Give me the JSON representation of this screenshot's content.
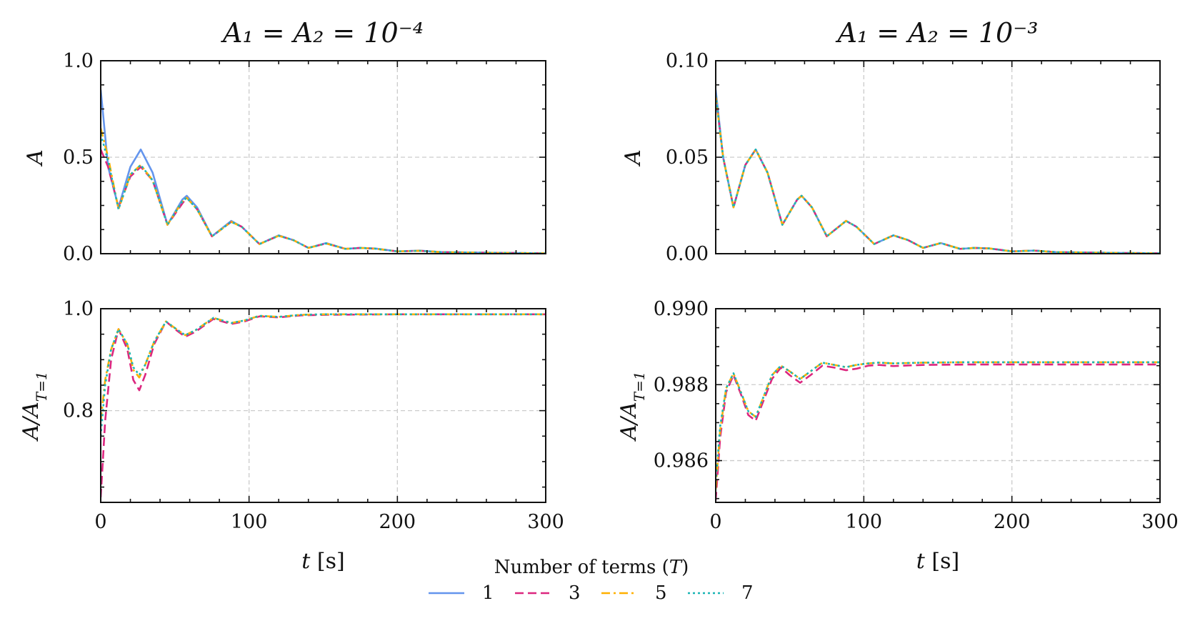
{
  "legend": {
    "title": "Number of terms (T)",
    "entries": [
      {
        "label": "1",
        "color": "#6495ed",
        "dash": "solid"
      },
      {
        "label": "3",
        "color": "#dc267f",
        "dash": "dashed"
      },
      {
        "label": "5",
        "color": "#ffb000",
        "dash": "dashdot"
      },
      {
        "label": "7",
        "color": "#1bb5b5",
        "dash": "dotted"
      }
    ]
  },
  "chart_data": [
    {
      "id": "top-left",
      "type": "line",
      "title": "A₁ = A₂ = 10⁻⁴",
      "ylabel": "A",
      "xlabel": "",
      "xlim": [
        0,
        300
      ],
      "ylim": [
        0,
        1.0
      ],
      "yticks": [
        "0.0",
        "0.5",
        "1.0"
      ],
      "xticks": [
        "",
        "",
        "",
        ""
      ],
      "grid": true,
      "series": [
        {
          "name": "1",
          "x": [
            0,
            5,
            12,
            20,
            27,
            35,
            45,
            55,
            58,
            65,
            75,
            88,
            95,
            107,
            120,
            130,
            140,
            152,
            165,
            175,
            185,
            200,
            215,
            230,
            250,
            270,
            300
          ],
          "y": [
            0.85,
            0.45,
            0.24,
            0.45,
            0.54,
            0.42,
            0.15,
            0.28,
            0.3,
            0.24,
            0.09,
            0.17,
            0.14,
            0.05,
            0.095,
            0.07,
            0.03,
            0.055,
            0.025,
            0.03,
            0.027,
            0.012,
            0.016,
            0.008,
            0.006,
            0.004,
            0.002
          ]
        },
        {
          "name": "3",
          "x": [
            0,
            5,
            12,
            20,
            27,
            35,
            45,
            55,
            58,
            65,
            75,
            88,
            95,
            107,
            120,
            130,
            140,
            152,
            165,
            175,
            185,
            200,
            215,
            230,
            250,
            270,
            300
          ],
          "y": [
            0.54,
            0.45,
            0.24,
            0.4,
            0.45,
            0.38,
            0.15,
            0.26,
            0.29,
            0.23,
            0.09,
            0.165,
            0.14,
            0.05,
            0.093,
            0.07,
            0.03,
            0.053,
            0.025,
            0.03,
            0.026,
            0.012,
            0.015,
            0.008,
            0.006,
            0.004,
            0.002
          ]
        },
        {
          "name": "5",
          "x": [
            0,
            5,
            12,
            20,
            27,
            35,
            45,
            55,
            58,
            65,
            75,
            88,
            95,
            107,
            120,
            130,
            140,
            152,
            165,
            175,
            185,
            200,
            215,
            230,
            250,
            270,
            300
          ],
          "y": [
            0.65,
            0.5,
            0.23,
            0.41,
            0.46,
            0.38,
            0.15,
            0.27,
            0.29,
            0.23,
            0.09,
            0.165,
            0.14,
            0.05,
            0.093,
            0.07,
            0.03,
            0.053,
            0.025,
            0.03,
            0.026,
            0.012,
            0.015,
            0.008,
            0.006,
            0.004,
            0.002
          ]
        },
        {
          "name": "7",
          "x": [
            0,
            5,
            12,
            20,
            27,
            35,
            45,
            55,
            58,
            65,
            75,
            88,
            95,
            107,
            120,
            130,
            140,
            152,
            165,
            175,
            185,
            200,
            215,
            230,
            250,
            270,
            300
          ],
          "y": [
            0.62,
            0.48,
            0.23,
            0.41,
            0.46,
            0.38,
            0.15,
            0.27,
            0.29,
            0.23,
            0.09,
            0.165,
            0.14,
            0.05,
            0.093,
            0.07,
            0.03,
            0.053,
            0.025,
            0.03,
            0.026,
            0.012,
            0.015,
            0.008,
            0.006,
            0.004,
            0.002
          ]
        }
      ]
    },
    {
      "id": "top-right",
      "type": "line",
      "title": "A₁ = A₂ = 10⁻³",
      "ylabel": "A",
      "xlabel": "",
      "xlim": [
        0,
        300
      ],
      "ylim": [
        0,
        0.1
      ],
      "yticks": [
        "0.00",
        "0.05",
        "0.10"
      ],
      "xticks": [
        "",
        "",
        "",
        ""
      ],
      "grid": true,
      "series": [
        {
          "name": "1",
          "x": [
            0,
            5,
            12,
            20,
            27,
            35,
            45,
            55,
            58,
            65,
            75,
            88,
            95,
            107,
            120,
            130,
            140,
            152,
            165,
            175,
            185,
            200,
            215,
            230,
            250,
            270,
            300
          ],
          "y": [
            0.085,
            0.05,
            0.024,
            0.046,
            0.054,
            0.042,
            0.015,
            0.028,
            0.03,
            0.024,
            0.009,
            0.017,
            0.014,
            0.005,
            0.0095,
            0.007,
            0.003,
            0.0055,
            0.0025,
            0.003,
            0.0027,
            0.0012,
            0.0016,
            0.0008,
            0.0006,
            0.0004,
            0.0002
          ]
        },
        {
          "name": "3",
          "x": [
            0,
            5,
            12,
            20,
            27,
            35,
            45,
            55,
            58,
            65,
            75,
            88,
            95,
            107,
            120,
            130,
            140,
            152,
            165,
            175,
            185,
            200,
            215,
            230,
            250,
            270,
            300
          ],
          "y": [
            0.082,
            0.05,
            0.024,
            0.046,
            0.054,
            0.042,
            0.015,
            0.028,
            0.03,
            0.024,
            0.009,
            0.017,
            0.014,
            0.005,
            0.0095,
            0.007,
            0.003,
            0.0055,
            0.0025,
            0.003,
            0.0027,
            0.0012,
            0.0016,
            0.0008,
            0.0006,
            0.0004,
            0.0002
          ]
        },
        {
          "name": "5",
          "x": [
            0,
            5,
            12,
            20,
            27,
            35,
            45,
            55,
            58,
            65,
            75,
            88,
            95,
            107,
            120,
            130,
            140,
            152,
            165,
            175,
            185,
            200,
            215,
            230,
            250,
            270,
            300
          ],
          "y": [
            0.082,
            0.05,
            0.024,
            0.046,
            0.054,
            0.042,
            0.015,
            0.028,
            0.03,
            0.024,
            0.009,
            0.017,
            0.014,
            0.005,
            0.0095,
            0.007,
            0.003,
            0.0055,
            0.0025,
            0.003,
            0.0027,
            0.0012,
            0.0016,
            0.0008,
            0.0006,
            0.0004,
            0.0002
          ]
        },
        {
          "name": "7",
          "x": [
            0,
            5,
            12,
            20,
            27,
            35,
            45,
            55,
            58,
            65,
            75,
            88,
            95,
            107,
            120,
            130,
            140,
            152,
            165,
            175,
            185,
            200,
            215,
            230,
            250,
            270,
            300
          ],
          "y": [
            0.082,
            0.05,
            0.024,
            0.046,
            0.054,
            0.042,
            0.015,
            0.028,
            0.03,
            0.024,
            0.009,
            0.017,
            0.014,
            0.005,
            0.0095,
            0.007,
            0.003,
            0.0055,
            0.0025,
            0.003,
            0.0027,
            0.0012,
            0.0016,
            0.0008,
            0.0006,
            0.0004,
            0.0002
          ]
        }
      ]
    },
    {
      "id": "bottom-left",
      "type": "line",
      "title": "",
      "ylabel": "A/A_{T=1}",
      "xlabel": "t [s]",
      "xlim": [
        0,
        300
      ],
      "ylim": [
        0.62,
        1.0
      ],
      "ytick_values": [
        0.8,
        1.0
      ],
      "yticks": [
        "0.8",
        "1.0"
      ],
      "xtick_values": [
        0,
        100,
        200,
        300
      ],
      "xticks": [
        "0",
        "100",
        "200",
        "300"
      ],
      "grid": true,
      "series": [
        {
          "name": "3",
          "x": [
            0,
            3,
            7,
            12,
            18,
            22,
            26,
            30,
            36,
            44,
            50,
            57,
            64,
            76,
            88,
            97,
            107,
            120,
            135,
            150,
            200,
            250,
            300
          ],
          "y": [
            0.63,
            0.78,
            0.9,
            0.96,
            0.92,
            0.86,
            0.84,
            0.87,
            0.93,
            0.975,
            0.96,
            0.945,
            0.955,
            0.98,
            0.97,
            0.975,
            0.985,
            0.983,
            0.987,
            0.988,
            0.989,
            0.989,
            0.989
          ]
        },
        {
          "name": "5",
          "x": [
            0,
            3,
            7,
            12,
            18,
            22,
            26,
            30,
            36,
            44,
            50,
            57,
            64,
            76,
            88,
            97,
            107,
            120,
            135,
            150,
            200,
            250,
            300
          ],
          "y": [
            0.78,
            0.86,
            0.92,
            0.96,
            0.93,
            0.88,
            0.865,
            0.89,
            0.935,
            0.975,
            0.962,
            0.948,
            0.958,
            0.982,
            0.972,
            0.977,
            0.986,
            0.984,
            0.988,
            0.989,
            0.989,
            0.989,
            0.989
          ]
        },
        {
          "name": "7",
          "x": [
            0,
            3,
            7,
            12,
            18,
            22,
            26,
            30,
            36,
            44,
            50,
            57,
            64,
            76,
            88,
            97,
            107,
            120,
            135,
            150,
            200,
            250,
            300
          ],
          "y": [
            0.75,
            0.85,
            0.92,
            0.96,
            0.93,
            0.885,
            0.87,
            0.89,
            0.935,
            0.975,
            0.962,
            0.948,
            0.958,
            0.982,
            0.972,
            0.977,
            0.986,
            0.984,
            0.988,
            0.989,
            0.989,
            0.989,
            0.989
          ]
        }
      ]
    },
    {
      "id": "bottom-right",
      "type": "line",
      "title": "",
      "ylabel": "A/A_{T=1}",
      "xlabel": "t [s]",
      "xlim": [
        0,
        300
      ],
      "ylim": [
        0.9849,
        0.99
      ],
      "ytick_values": [
        0.986,
        0.988,
        0.99
      ],
      "yticks": [
        "0.986",
        "0.988",
        "0.990"
      ],
      "xtick_values": [
        0,
        100,
        200,
        300
      ],
      "xticks": [
        "0",
        "100",
        "200",
        "300"
      ],
      "grid": true,
      "series": [
        {
          "name": "3",
          "x": [
            0,
            3,
            7,
            12,
            17,
            22,
            27,
            32,
            38,
            44,
            50,
            57,
            64,
            72,
            80,
            88,
            95,
            103,
            110,
            120,
            140,
            170,
            200,
            250,
            300
          ],
          "y": [
            0.98495,
            0.9866,
            0.9878,
            0.98825,
            0.98775,
            0.9872,
            0.98705,
            0.98755,
            0.98815,
            0.98845,
            0.98825,
            0.98805,
            0.98825,
            0.9885,
            0.98845,
            0.98838,
            0.98842,
            0.9885,
            0.98852,
            0.98849,
            0.98852,
            0.98853,
            0.98853,
            0.98853,
            0.98853
          ]
        },
        {
          "name": "5",
          "x": [
            0,
            3,
            7,
            12,
            17,
            22,
            27,
            32,
            38,
            44,
            50,
            57,
            64,
            72,
            80,
            88,
            95,
            103,
            110,
            120,
            140,
            170,
            200,
            250,
            300
          ],
          "y": [
            0.98525,
            0.9868,
            0.9879,
            0.9883,
            0.9878,
            0.9873,
            0.98715,
            0.98765,
            0.98825,
            0.9885,
            0.98835,
            0.98815,
            0.98835,
            0.98858,
            0.98852,
            0.98846,
            0.98852,
            0.98856,
            0.98858,
            0.98856,
            0.98858,
            0.98859,
            0.98859,
            0.98859,
            0.98859
          ]
        },
        {
          "name": "7",
          "x": [
            0,
            3,
            7,
            12,
            17,
            22,
            27,
            32,
            38,
            44,
            50,
            57,
            64,
            72,
            80,
            88,
            95,
            103,
            110,
            120,
            140,
            170,
            200,
            250,
            300
          ],
          "y": [
            0.98545,
            0.9869,
            0.9879,
            0.9883,
            0.9878,
            0.9873,
            0.98715,
            0.98765,
            0.98825,
            0.9885,
            0.98835,
            0.98815,
            0.98835,
            0.98858,
            0.98852,
            0.98846,
            0.98852,
            0.98856,
            0.98858,
            0.98856,
            0.98858,
            0.98859,
            0.98859,
            0.98859,
            0.98859
          ]
        }
      ]
    }
  ]
}
